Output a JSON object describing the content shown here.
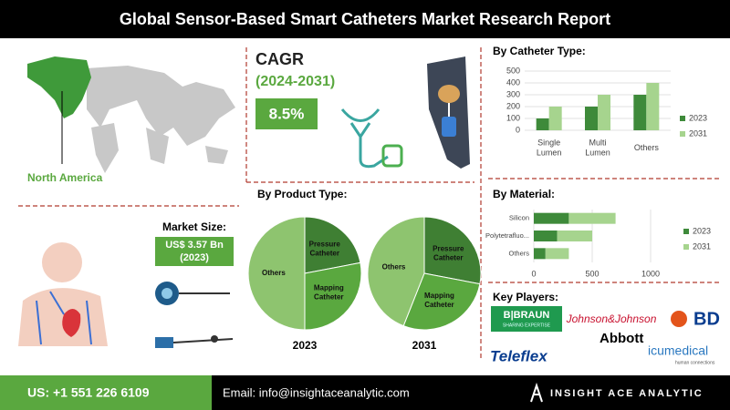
{
  "header": {
    "title": "Global Sensor-Based Smart Catheters Market Research Report"
  },
  "region": "North America",
  "cagr": {
    "label": "CAGR",
    "period": "(2024-2031)",
    "value": "8.5%"
  },
  "market_size": {
    "label": "Market Size:",
    "value": "US$ 3.57 Bn",
    "year": "(2023)"
  },
  "sections": {
    "catheter_type": "By Catheter Type:",
    "product_type": "By Product Type:",
    "material": "By Material:",
    "key_players": "Key Players:"
  },
  "chart_data": [
    {
      "type": "bar",
      "categories": [
        "Single Lumen",
        "Multi Lumen",
        "Others"
      ],
      "series": [
        {
          "name": "2023",
          "color": "#3e8a3a",
          "values": [
            100,
            200,
            300
          ]
        },
        {
          "name": "2031",
          "color": "#a6d48e",
          "values": [
            200,
            300,
            400
          ]
        }
      ],
      "ylim": [
        0,
        500
      ],
      "yticks": [
        0,
        100,
        200,
        300,
        400,
        500
      ],
      "grid": true,
      "legend": "right"
    },
    {
      "type": "pie",
      "title": "2023",
      "categories": [
        "Pressure Catheter",
        "Mapping Catheter",
        "Others"
      ],
      "values": [
        22,
        28,
        50
      ],
      "colors": [
        "#3f7f33",
        "#5aa83f",
        "#8ec46f"
      ]
    },
    {
      "type": "pie",
      "title": "2031",
      "categories": [
        "Pressure Catheter",
        "Mapping Catheter",
        "Others"
      ],
      "values": [
        28,
        28,
        44
      ],
      "colors": [
        "#3f7f33",
        "#5aa83f",
        "#8ec46f"
      ]
    },
    {
      "type": "hbar",
      "stacked": true,
      "categories": [
        "Silicon",
        "Polytetrafluo...",
        "Others"
      ],
      "series": [
        {
          "name": "2023",
          "color": "#3e8a3a",
          "values": [
            300,
            200,
            100
          ]
        },
        {
          "name": "2031",
          "color": "#a6d48e",
          "values": [
            400,
            300,
            200
          ]
        }
      ],
      "xlim": [
        0,
        1000
      ],
      "xticks": [
        0,
        500,
        1000
      ],
      "grid": true,
      "legend": "right"
    }
  ],
  "players": {
    "braun": "B|BRAUN",
    "braun_tag": "SHARING EXPERTISE",
    "jnj": "Johnson&Johnson",
    "bd": "BD",
    "abbott": "Abbott",
    "teleflex": "Teleflex",
    "icu": "icumedical",
    "icu_tag": "human connections"
  },
  "footer": {
    "phone": "US: +1 551 226 6109",
    "email": "Email: info@insightaceanalytic.com",
    "brand": "INSIGHT ACE ANALYTIC"
  }
}
